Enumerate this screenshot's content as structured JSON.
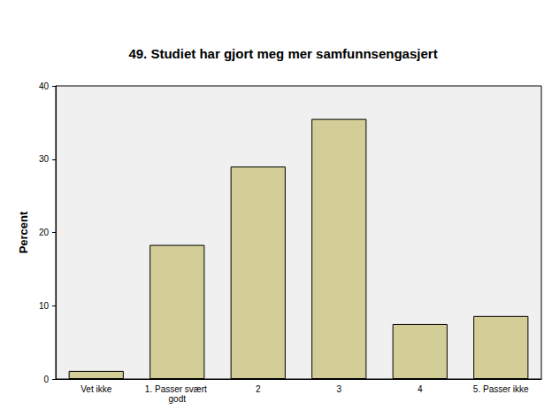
{
  "chart_data": {
    "type": "bar",
    "title": "49. Studiet har gjort meg mer samfunnsengasjert",
    "categories": [
      "Vet ikke",
      "1. Passer svært godt",
      "2",
      "3",
      "4",
      "5. Passer ikke"
    ],
    "values": [
      1.1,
      18.3,
      29.0,
      35.5,
      7.5,
      8.6
    ],
    "color": "#d3ce97",
    "y_label": "Percent",
    "ylim": [
      0,
      40
    ],
    "yticks": [
      0,
      10,
      20,
      30,
      40
    ],
    "grid": false
  }
}
